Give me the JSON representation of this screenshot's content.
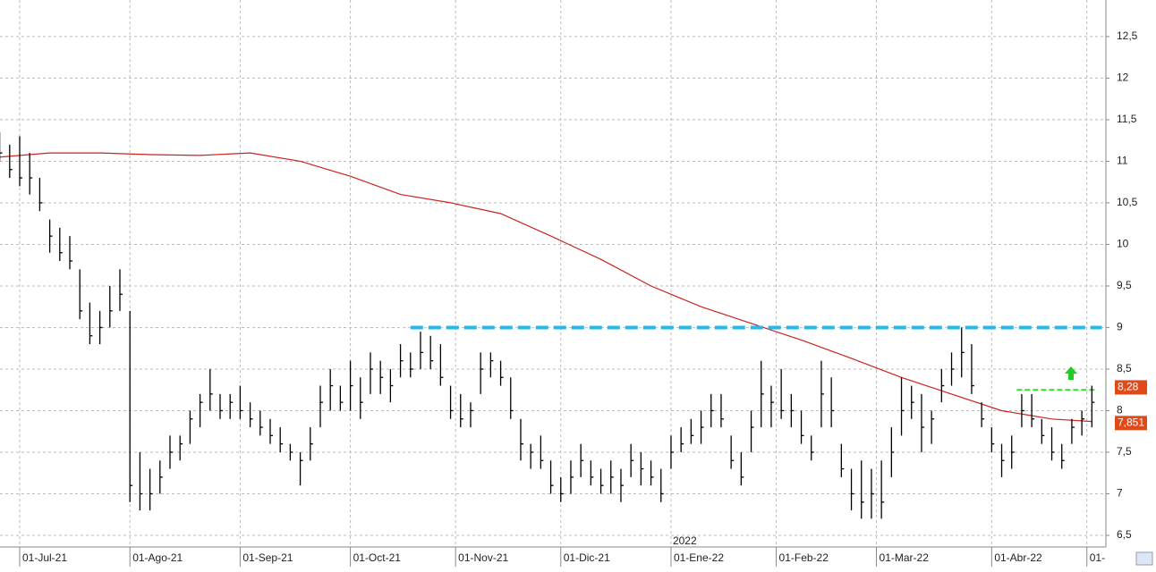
{
  "chart_data": {
    "type": "ohlc",
    "x": [
      -4,
      -2,
      0,
      2,
      4,
      6,
      8,
      10,
      12,
      14,
      16,
      18,
      20,
      22,
      24,
      26,
      28,
      30,
      32,
      34,
      36,
      38,
      40,
      42,
      44,
      46,
      48,
      50,
      52,
      54,
      56,
      58,
      60,
      62,
      64,
      66,
      68,
      70,
      72,
      74,
      76,
      78,
      80,
      82,
      84,
      86,
      88,
      90,
      92,
      94,
      96,
      98,
      100,
      102,
      104,
      106,
      108,
      110,
      112,
      114,
      116,
      118,
      120,
      122,
      124,
      126,
      128,
      130,
      132,
      134,
      136,
      138,
      140,
      142,
      144,
      146,
      148,
      150,
      152,
      154,
      156,
      158,
      160,
      162,
      164,
      166,
      168,
      170,
      172,
      174,
      176,
      178,
      180,
      182,
      184,
      186,
      188,
      190,
      192,
      194,
      196,
      198,
      200,
      202,
      204,
      206,
      208,
      210,
      212,
      214
    ],
    "high": [
      11.35,
      11.2,
      11.3,
      11.1,
      10.8,
      10.3,
      10.2,
      10.1,
      9.7,
      9.3,
      9.2,
      9.5,
      9.7,
      9.2,
      7.5,
      7.3,
      7.4,
      7.7,
      7.7,
      8.0,
      8.2,
      8.5,
      8.2,
      8.2,
      8.3,
      8.1,
      8.0,
      7.9,
      7.8,
      7.6,
      7.5,
      7.8,
      8.3,
      8.5,
      8.3,
      8.6,
      8.4,
      8.7,
      8.6,
      8.5,
      8.8,
      8.7,
      8.95,
      8.9,
      8.8,
      8.3,
      8.2,
      8.1,
      8.7,
      8.7,
      8.6,
      8.4,
      7.9,
      7.6,
      7.7,
      7.4,
      7.2,
      7.4,
      7.6,
      7.4,
      7.3,
      7.4,
      7.3,
      7.6,
      7.5,
      7.4,
      7.3,
      7.7,
      7.8,
      7.9,
      8.0,
      8.2,
      8.2,
      7.7,
      7.5,
      8.0,
      8.6,
      8.3,
      8.5,
      8.2,
      8.0,
      7.7,
      8.6,
      8.4,
      7.6,
      7.3,
      7.4,
      7.3,
      7.4,
      7.8,
      8.4,
      8.3,
      8.2,
      8.0,
      8.5,
      8.7,
      9.0,
      8.8,
      8.1,
      7.8,
      7.6,
      7.7,
      8.2,
      8.2,
      7.9,
      7.8,
      7.6,
      7.9,
      8.0,
      8.3
    ],
    "low": [
      11.0,
      10.8,
      10.7,
      10.6,
      10.4,
      9.9,
      9.8,
      9.7,
      9.1,
      8.8,
      8.8,
      9.0,
      9.2,
      6.9,
      6.8,
      6.8,
      7.0,
      7.3,
      7.4,
      7.6,
      7.8,
      8.0,
      7.9,
      7.9,
      7.9,
      7.8,
      7.7,
      7.6,
      7.5,
      7.4,
      7.1,
      7.4,
      7.8,
      8.0,
      8.0,
      8.0,
      7.9,
      8.2,
      8.2,
      8.1,
      8.4,
      8.4,
      8.5,
      8.5,
      8.3,
      7.9,
      7.8,
      7.8,
      8.2,
      8.4,
      8.3,
      7.9,
      7.4,
      7.3,
      7.3,
      7.0,
      6.9,
      7.0,
      7.2,
      7.1,
      7.0,
      7.0,
      6.9,
      7.2,
      7.1,
      7.1,
      6.9,
      7.3,
      7.5,
      7.6,
      7.6,
      7.8,
      7.8,
      7.3,
      7.1,
      7.5,
      7.8,
      7.8,
      7.9,
      7.8,
      7.6,
      7.4,
      7.8,
      7.8,
      7.2,
      6.8,
      6.7,
      6.7,
      6.7,
      7.2,
      7.7,
      7.9,
      7.5,
      7.6,
      8.1,
      8.3,
      8.4,
      8.2,
      7.8,
      7.5,
      7.2,
      7.3,
      7.8,
      7.8,
      7.6,
      7.4,
      7.3,
      7.6,
      7.7,
      7.8
    ],
    "close": [
      11.1,
      10.9,
      10.8,
      10.8,
      10.5,
      10.1,
      9.9,
      9.8,
      9.2,
      8.9,
      9.0,
      9.2,
      9.4,
      7.1,
      7.0,
      7.0,
      7.2,
      7.5,
      7.6,
      7.9,
      8.1,
      8.2,
      8.0,
      8.1,
      8.0,
      7.9,
      7.8,
      7.7,
      7.6,
      7.5,
      7.4,
      7.6,
      8.1,
      8.3,
      8.1,
      8.3,
      8.1,
      8.5,
      8.4,
      8.3,
      8.6,
      8.5,
      8.7,
      8.6,
      8.4,
      8.0,
      7.9,
      8.0,
      8.5,
      8.6,
      8.4,
      8.0,
      7.6,
      7.5,
      7.4,
      7.1,
      7.0,
      7.2,
      7.4,
      7.2,
      7.1,
      7.2,
      7.1,
      7.4,
      7.3,
      7.2,
      7.0,
      7.5,
      7.6,
      7.7,
      7.8,
      8.0,
      7.9,
      7.4,
      7.2,
      7.8,
      8.2,
      8.1,
      8.0,
      8.0,
      7.7,
      7.5,
      8.2,
      8.0,
      7.3,
      7.0,
      6.9,
      7.0,
      6.9,
      7.5,
      8.0,
      8.1,
      7.8,
      7.9,
      8.3,
      8.5,
      8.7,
      8.3,
      7.9,
      7.6,
      7.4,
      7.5,
      8.0,
      7.9,
      7.7,
      7.5,
      7.4,
      7.8,
      7.9,
      8.1
    ],
    "bar_color": "#000000",
    "ma": {
      "color": "#cc2222",
      "x": [
        -4,
        6,
        16,
        26,
        36,
        46,
        56,
        66,
        76,
        86,
        96,
        106,
        116,
        126,
        136,
        146,
        156,
        166,
        176,
        186,
        196,
        206,
        214
      ],
      "values": [
        11.05,
        11.1,
        11.1,
        11.08,
        11.07,
        11.1,
        11.0,
        10.82,
        10.6,
        10.5,
        10.37,
        10.1,
        9.82,
        9.5,
        9.25,
        9.05,
        8.85,
        8.63,
        8.4,
        8.2,
        8.0,
        7.9,
        7.87
      ]
    },
    "resistance": {
      "value": 9,
      "x": [
        78,
        216
      ],
      "color": "#22bbee"
    },
    "trigger": {
      "value": 8.25,
      "x": [
        199,
        215
      ],
      "color": "#33dd33"
    },
    "price_labels": [
      {
        "value": 8.28,
        "label": "8,28"
      },
      {
        "value": 7.851,
        "label": "7,851"
      }
    ],
    "xlim": [
      -3.93,
      216.8
    ],
    "ylim": [
      6.36,
      12.94
    ],
    "yticks": [
      {
        "value": 6.5,
        "label": "6,5"
      },
      7,
      {
        "value": 7.5,
        "label": "7,5"
      },
      8,
      {
        "value": 8.5,
        "label": "8,5"
      },
      9,
      {
        "value": 9.5,
        "label": "9,5"
      },
      10,
      {
        "value": 10.5,
        "label": "10,5"
      },
      11,
      {
        "value": 11.5,
        "label": "11,5"
      },
      12,
      {
        "value": 12.5,
        "label": "12,5"
      }
    ],
    "xticks": [
      {
        "value": 0,
        "label": "01-Jul-21"
      },
      {
        "value": 22,
        "label": "01-Ago-21"
      },
      {
        "value": 44,
        "label": "01-Sep-21"
      },
      {
        "value": 66,
        "label": "01-Oct-21"
      },
      {
        "value": 87,
        "label": "01-Nov-21"
      },
      {
        "value": 108,
        "label": "01-Dic-21"
      },
      {
        "value": 130,
        "label": "01-Ene-22"
      },
      {
        "value": 151,
        "label": "01-Feb-22"
      },
      {
        "value": 171,
        "label": "01-Mar-22"
      },
      {
        "value": 194,
        "label": "01-Abr-22"
      },
      {
        "value": 213,
        "label": "01-"
      }
    ],
    "year_label": {
      "value": 130,
      "label": "2022"
    },
    "grid": true
  }
}
